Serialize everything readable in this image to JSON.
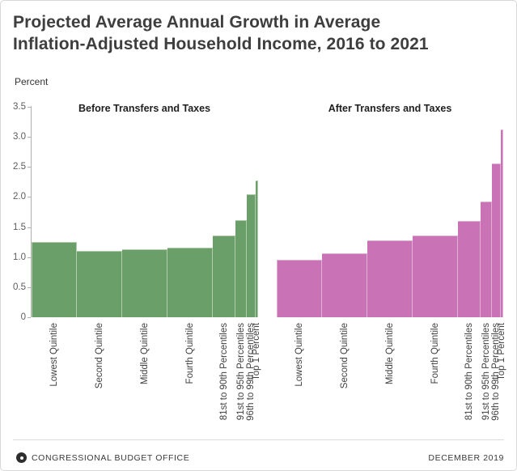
{
  "header": {
    "title_line1": "Projected Average Annual Growth in Average",
    "title_line2": "Inflation-Adjusted Household Income, 2016 to 2021",
    "unit_label": "Percent"
  },
  "chart_data": {
    "type": "bar",
    "title": "Projected Average Annual Growth in Average Inflation-Adjusted Household Income, 2016 to 2021",
    "ylabel": "Percent",
    "ylim": [
      0,
      3.5
    ],
    "yticks": [
      "0",
      "0.5",
      "1.0",
      "1.5",
      "2.0",
      "2.5",
      "3.0",
      "3.5"
    ],
    "grid": false,
    "layout": "two-panel side-by-side, bar widths proportional to population share",
    "categories": [
      "Lowest Quintile",
      "Second Quintile",
      "Middle Quintile",
      "Fourth Quintile",
      "81st to 90th Percentiles",
      "91st to 95th Percentiles",
      "96th to 99th Percentiles",
      "Top 1 Percent"
    ],
    "population_shares_pct": [
      20,
      20,
      20,
      20,
      10,
      5,
      4,
      1
    ],
    "series": [
      {
        "name": "Before Transfers and Taxes",
        "color": "#6b9f6a",
        "border_color": "#b2cdab",
        "values": [
          1.25,
          1.11,
          1.13,
          1.16,
          1.36,
          1.62,
          2.04,
          2.27
        ]
      },
      {
        "name": "After Transfers and Taxes",
        "color": "#c973b6",
        "border_color": "#e2b0d5",
        "values": [
          0.96,
          1.07,
          1.28,
          1.36,
          1.6,
          1.92,
          2.56,
          3.12
        ]
      }
    ]
  },
  "footer": {
    "source": "CONGRESSIONAL BUDGET OFFICE",
    "date": "DECEMBER 2019"
  }
}
